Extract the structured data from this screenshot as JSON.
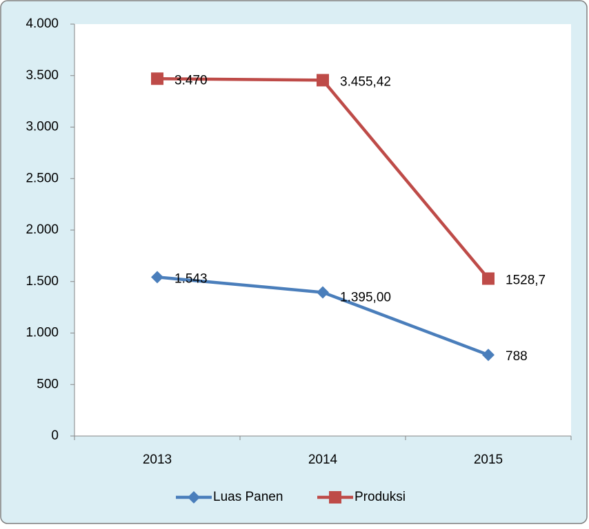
{
  "chart_data": {
    "type": "line",
    "categories": [
      "2013",
      "2014",
      "2015"
    ],
    "series": [
      {
        "name": "Luas Panen",
        "color": "#4a7ebb",
        "marker": "diamond",
        "values": [
          1543,
          1395,
          788
        ],
        "value_labels": [
          "1.543",
          "1.395,00",
          "788"
        ]
      },
      {
        "name": "Produksi",
        "color": "#be4b48",
        "marker": "square",
        "values": [
          3470,
          3455.42,
          1528.7
        ],
        "value_labels": [
          "3.470",
          "3.455,42",
          "1528,7"
        ]
      }
    ],
    "ylim": [
      0,
      4000
    ],
    "yticks": [
      0,
      500,
      {
        "value": 1000,
        "label": "1.000"
      },
      {
        "value": 1500,
        "label": "1.500"
      },
      {
        "value": 2000,
        "label": "2.000"
      },
      {
        "value": 2500,
        "label": "2.500"
      },
      {
        "value": 3000,
        "label": "3.000"
      },
      {
        "value": 3500,
        "label": "3.500"
      },
      {
        "value": 4000,
        "label": "4.000"
      }
    ],
    "grid": false,
    "legend": "bottom"
  }
}
